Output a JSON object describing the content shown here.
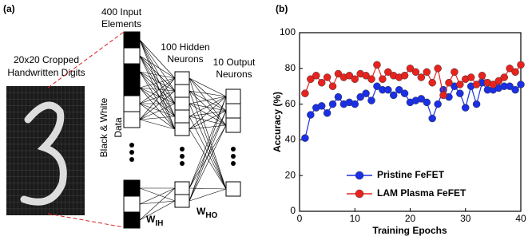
{
  "diagram": {
    "panel_label": "(a)",
    "image_label": [
      "20x20 Cropped",
      "Handwritten Digits"
    ],
    "input_label": [
      "400 Input",
      "Elements"
    ],
    "hidden_label": [
      "100 Hidden",
      "Neurons"
    ],
    "output_label": [
      "10 Output",
      "Neurons"
    ],
    "data_label": [
      "Black & White",
      "Data"
    ],
    "w_ih": {
      "symbol": "W",
      "subscript": "IH"
    },
    "w_ho": {
      "symbol": "W",
      "subscript": "HO"
    }
  },
  "chart_data": {
    "type": "line",
    "panel_label": "(b)",
    "x_label": "Training Epochs",
    "y_label": "Accuracy (%)",
    "x": [
      1,
      2,
      3,
      4,
      5,
      6,
      7,
      8,
      9,
      10,
      11,
      12,
      13,
      14,
      15,
      16,
      17,
      18,
      19,
      20,
      21,
      22,
      23,
      24,
      25,
      26,
      27,
      28,
      29,
      30,
      31,
      32,
      33,
      34,
      35,
      36,
      37,
      38,
      39,
      40
    ],
    "series": [
      {
        "name": "Pristine FeFET",
        "color": "#1a2fe6",
        "values": [
          41,
          54,
          58,
          59,
          55,
          60,
          64,
          60,
          61,
          60,
          64,
          66,
          62,
          70,
          68,
          68,
          65,
          68,
          66,
          61,
          62,
          63,
          61,
          52,
          60,
          68,
          64,
          70,
          66,
          58,
          70,
          60,
          72,
          68,
          68,
          69,
          70,
          70,
          68,
          71
        ]
      },
      {
        "name": "LAM Plasma FeFET",
        "color": "#e8231e",
        "values": [
          66,
          74,
          76,
          72,
          75,
          70,
          77,
          75,
          76,
          74,
          77,
          76,
          74,
          82,
          74,
          78,
          76,
          75,
          76,
          80,
          78,
          75,
          78,
          72,
          80,
          65,
          72,
          78,
          71,
          74,
          75,
          71,
          76,
          72,
          71,
          73,
          75,
          80,
          78,
          82
        ]
      }
    ],
    "xlim": [
      0,
      40
    ],
    "xticks": [
      0,
      10,
      20,
      30,
      40
    ],
    "ylim": [
      0,
      100
    ],
    "yticks": [
      0,
      20,
      40,
      60,
      80,
      100
    ],
    "legend": "lower right"
  }
}
